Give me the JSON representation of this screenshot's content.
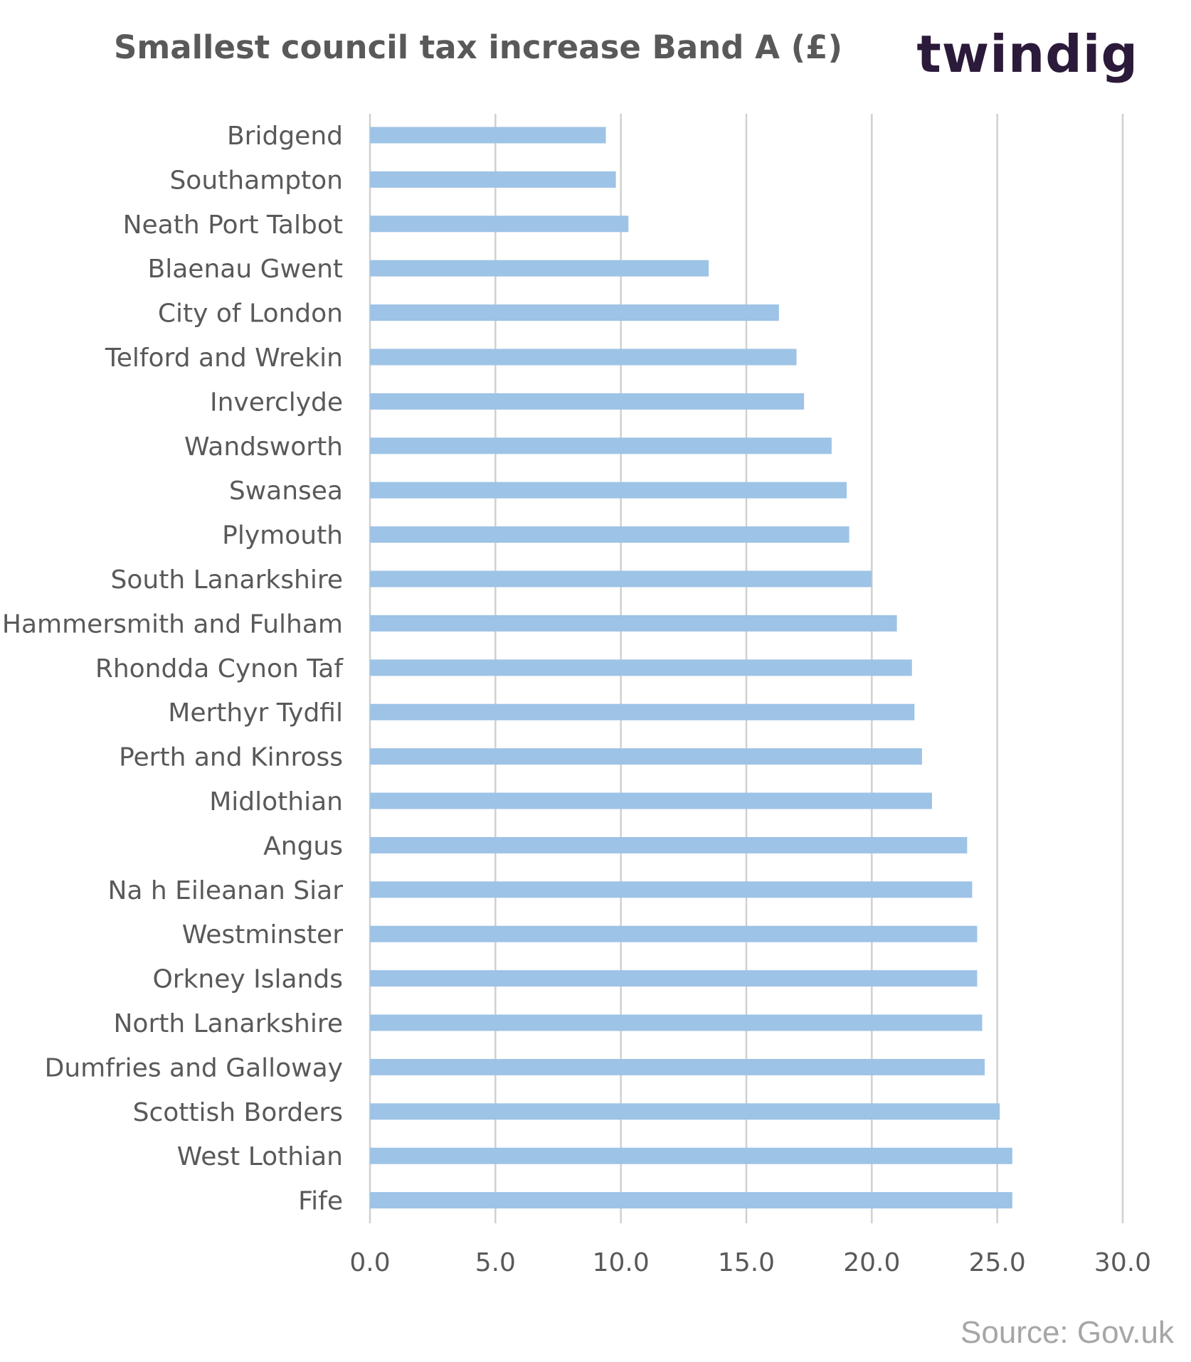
{
  "title": "Smallest council  tax increase Band A (£)",
  "logo": "twindig",
  "source": "Source: Gov.uk",
  "colors": {
    "bar": "#9dc3e6",
    "grid": "#d0d0d0",
    "text": "#595959",
    "logo": "#2b1a3a",
    "logo_accent": "#f4a01c"
  },
  "chart_data": {
    "type": "bar",
    "orientation": "horizontal",
    "title": "Smallest council  tax increase Band A (£)",
    "categories": [
      "Bridgend",
      "Southampton",
      "Neath Port Talbot",
      "Blaenau Gwent",
      "City of London",
      "Telford and Wrekin",
      "Inverclyde",
      "Wandsworth",
      "Swansea",
      "Plymouth",
      "South Lanarkshire",
      "Hammersmith and Fulham",
      "Rhondda Cynon Taf",
      "Merthyr Tydfil",
      "Perth and Kinross",
      "Midlothian",
      "Angus",
      "Na h Eileanan Siar",
      "Westminster",
      "Orkney Islands",
      "North Lanarkshire",
      "Dumfries and Galloway",
      "Scottish Borders",
      "West Lothian",
      "Fife"
    ],
    "values": [
      9.4,
      9.8,
      10.3,
      13.5,
      16.3,
      17.0,
      17.3,
      18.4,
      19.0,
      19.1,
      20.0,
      21.0,
      21.6,
      21.7,
      22.0,
      22.4,
      23.8,
      24.0,
      24.2,
      24.2,
      24.4,
      24.5,
      25.1,
      25.6,
      25.6
    ],
    "xlim": [
      0,
      30
    ],
    "ticks": [
      "0.0",
      "5.0",
      "10.0",
      "15.0",
      "20.0",
      "25.0",
      "30.0"
    ],
    "grid": true,
    "legend": "none",
    "xlabel": "",
    "ylabel": ""
  }
}
